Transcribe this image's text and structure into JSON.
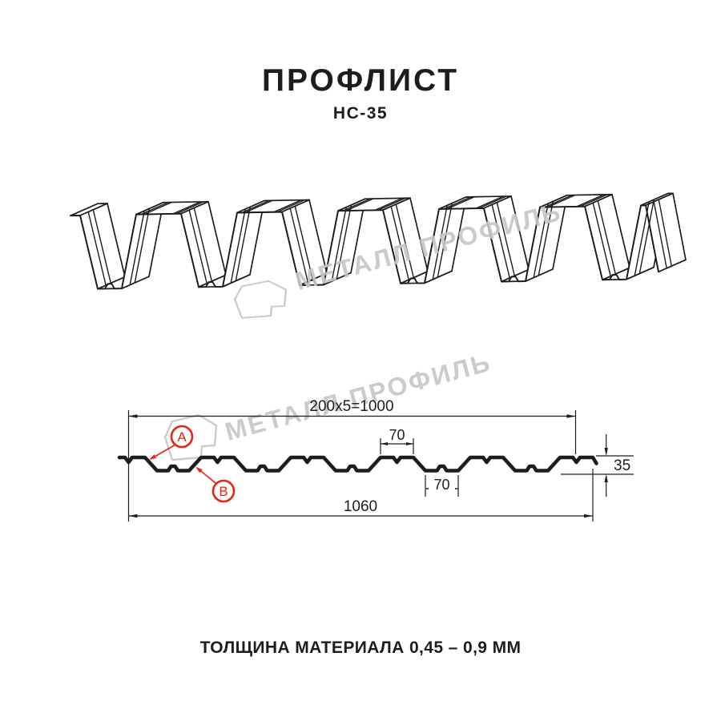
{
  "header": {
    "title": "ПРОФЛИСТ",
    "model": "НС-35"
  },
  "watermark": {
    "brand": "МЕТАЛЛ ПРОФИЛЬ"
  },
  "cross_section": {
    "dim_coverage": "200x5=1000",
    "dim_rib_top": "70",
    "dim_rib_bottom": "70",
    "dim_height": "35",
    "dim_overall": "1060",
    "callout_a": "A",
    "callout_b": "B"
  },
  "footer": {
    "thickness_note": "ТОЛЩИНА МАТЕРИАЛА 0,45 – 0,9 ММ"
  },
  "colors": {
    "line": "#1d1d1b",
    "red": "#e8250f",
    "watermark": "#c6c6c6",
    "background": "#ffffff"
  }
}
